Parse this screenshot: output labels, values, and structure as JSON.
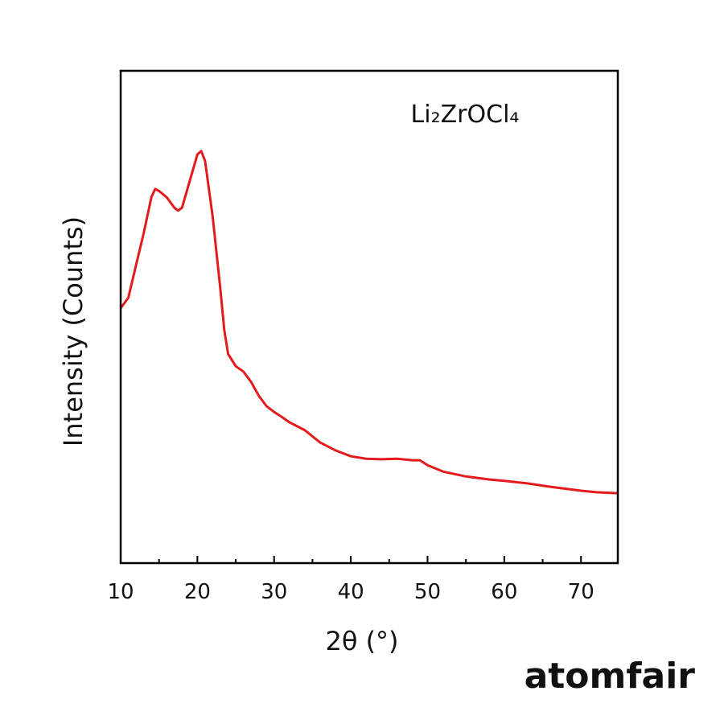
{
  "chart_data": {
    "type": "line",
    "annotation": "Li₂ZrOCl₄",
    "x_label": "2θ (°)",
    "y_label": "Intensity (Counts)",
    "watermark": "atomfair",
    "xlim": [
      10,
      74.8
    ],
    "ylim": [
      0,
      100
    ],
    "xticks": [
      10,
      20,
      30,
      40,
      50,
      60,
      70
    ],
    "xminor_ticks": [
      15,
      25,
      35,
      45,
      55,
      65
    ],
    "x": [
      10,
      11,
      12,
      13,
      14,
      14.5,
      15,
      16,
      17,
      17.5,
      18,
      19,
      20,
      20.5,
      21,
      22,
      23,
      23.5,
      24,
      25,
      26,
      27,
      28,
      29,
      30,
      31,
      32,
      34,
      36,
      38,
      40,
      42,
      44,
      46,
      48,
      49,
      50,
      52,
      55,
      58,
      60,
      63,
      66,
      70,
      72,
      74.8
    ],
    "series": [
      {
        "color": "#e41a1c",
        "values": [
          51.8,
          53.9,
          60.5,
          67,
          74.3,
          76,
          75.6,
          74.3,
          72.2,
          71.6,
          72.2,
          77.6,
          83,
          83.7,
          81.7,
          70.3,
          55.6,
          47.4,
          42.5,
          40,
          38.9,
          36.8,
          34,
          31.9,
          30.7,
          29.7,
          28.6,
          27,
          24.5,
          22.9,
          21.7,
          21.2,
          21.1,
          21.2,
          20.9,
          20.9,
          19.9,
          18.6,
          17.6,
          17,
          16.7,
          16.2,
          15.5,
          14.7,
          14.4,
          14.2
        ]
      }
    ]
  }
}
